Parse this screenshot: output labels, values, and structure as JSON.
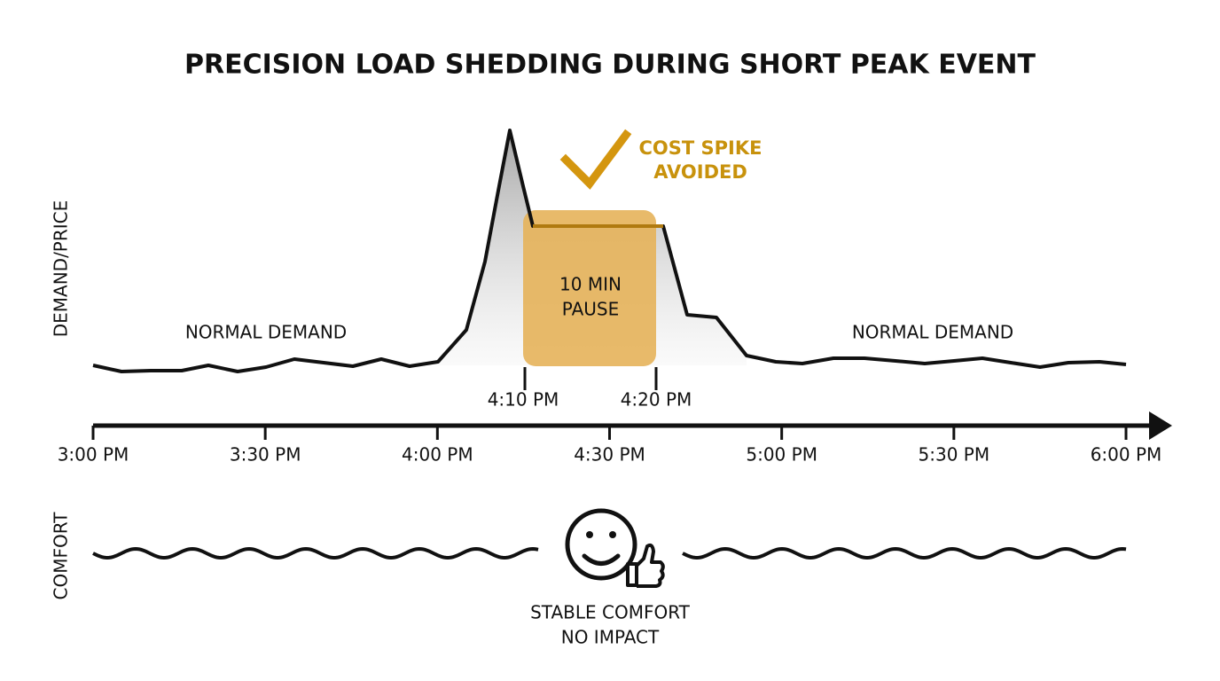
{
  "title": "PRECISION LOAD SHEDDING DURING SHORT PEAK EVENT",
  "axis_labels": {
    "demand": "DEMAND/PRICE",
    "comfort": "COMFORT"
  },
  "annotations": {
    "normal_left": "NORMAL DEMAND",
    "normal_right": "NORMAL DEMAND",
    "pause": [
      "10 MIN",
      "PAUSE"
    ],
    "avoided": [
      "COST SPIKE",
      "AVOIDED"
    ],
    "comfort": [
      "STABLE COMFORT",
      "NO IMPACT"
    ]
  },
  "pause_markers": [
    "4:10 PM",
    "4:20 PM"
  ],
  "time_ticks": [
    "3:00 PM",
    "3:30 PM",
    "4:00 PM",
    "4:30 PM",
    "5:00 PM",
    "5:30 PM",
    "6:00 PM"
  ]
}
